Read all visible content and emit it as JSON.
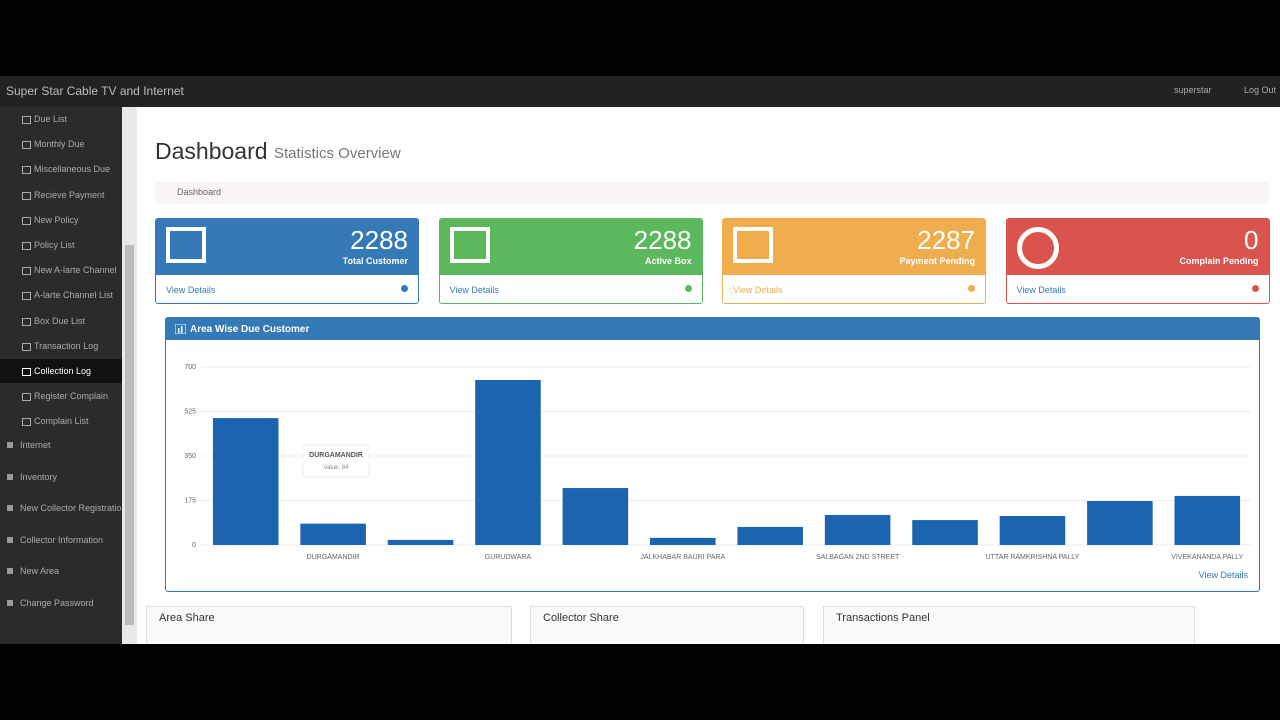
{
  "navbar": {
    "brand": "Super Star Cable TV and Internet",
    "user": "superstar",
    "logout": "Log Out"
  },
  "sidebar": {
    "items": [
      "Due List",
      "Monthly Due",
      "Miscellaneous Due",
      "Recieve Payment",
      "New Policy",
      "Policy List",
      "New A-larte Channel",
      "A-larte Channel List",
      "Box Due List",
      "Transaction Log",
      "Collection Log",
      "Register Complain",
      "Complain List"
    ],
    "sections": [
      "Internet",
      "Inventory",
      "New Collector Registration",
      "Collector Information",
      "New Area",
      "Change Password"
    ]
  },
  "header": {
    "title": "Dashboard",
    "subtitle": "Statistics Overview",
    "breadcrumb": "Dashboard"
  },
  "cards": [
    {
      "value": 2288,
      "label": "Total Customer",
      "link": "View Details"
    },
    {
      "value": 2288,
      "label": "Active Box",
      "link": "View Details"
    },
    {
      "value": 2287,
      "label": "Payment Pending",
      "link": "View Details"
    },
    {
      "value": 0,
      "label": "Complain Pending",
      "link": "View Details"
    }
  ],
  "chart_data": {
    "type": "bar",
    "title": "Area Wise Due Customer",
    "categories": [
      null,
      "DURGAMANDIR",
      null,
      "GURUDWARA",
      null,
      "JALKHABAR BAURI PARA",
      null,
      "SALBAGAN 2ND STREET",
      null,
      "UTTAR RAMKRISHNA PALLY",
      null,
      "VIVEKANANDA PALLY"
    ],
    "values": [
      499,
      84,
      20,
      649,
      224,
      28,
      71,
      118,
      98,
      114,
      173,
      193
    ],
    "color": "#1b64b0",
    "ylim": [
      0,
      700
    ],
    "yticks": [
      0,
      175,
      350,
      525,
      700
    ],
    "grid": true,
    "tooltip": {
      "title": "DURGAMANDIR",
      "label": "Value: 84"
    },
    "link": "View Details"
  },
  "panels": [
    "Area Share",
    "Collector Share",
    "Transactions Panel"
  ]
}
